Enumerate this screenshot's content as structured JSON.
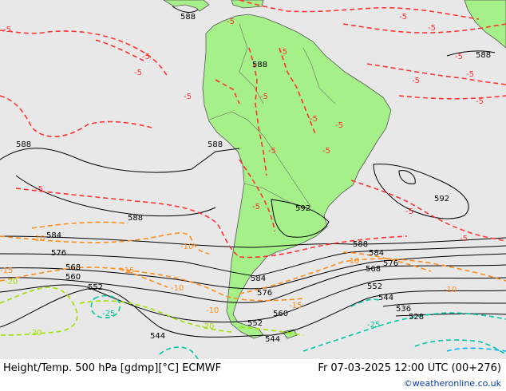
{
  "footer": {
    "title": "Height/Temp. 500 hPa [gdmp][°C] ECMWF",
    "valid_time": "Fr 07-03-2025 12:00 UTC (00+276)",
    "credit": "©weatheronline.co.uk"
  },
  "colors": {
    "ocean": "#e8e8e8",
    "land": "#a6f08a",
    "height_contour": "#000000",
    "temp_minus5": "#ff3333",
    "temp_minus10": "#ff8c1a",
    "temp_minus20": "#a0e000",
    "temp_minus25": "#00c8a0",
    "temp_minus30": "#00b4ff"
  },
  "height_labels": [
    "588",
    "588",
    "588",
    "588",
    "588",
    "588",
    "584",
    "576",
    "568",
    "560",
    "552",
    "592",
    "592",
    "588",
    "584",
    "576",
    "568",
    "584",
    "576",
    "560",
    "552",
    "544",
    "536",
    "528",
    "552",
    "544",
    "544"
  ],
  "temp_labels": [
    "-5",
    "-5",
    "-5",
    "-5",
    "-5",
    "-5",
    "-5",
    "-5",
    "-5",
    "-5",
    "-5",
    "-5",
    "-5",
    "-5",
    "-5",
    "-5",
    "-5",
    "-5",
    "-5",
    "-5",
    "-5",
    "-10",
    "-10",
    "-10",
    "-15",
    "-15",
    "-10",
    "-10",
    "-15",
    "-10",
    "-20",
    "-20",
    "-25",
    "-20",
    "-25"
  ]
}
